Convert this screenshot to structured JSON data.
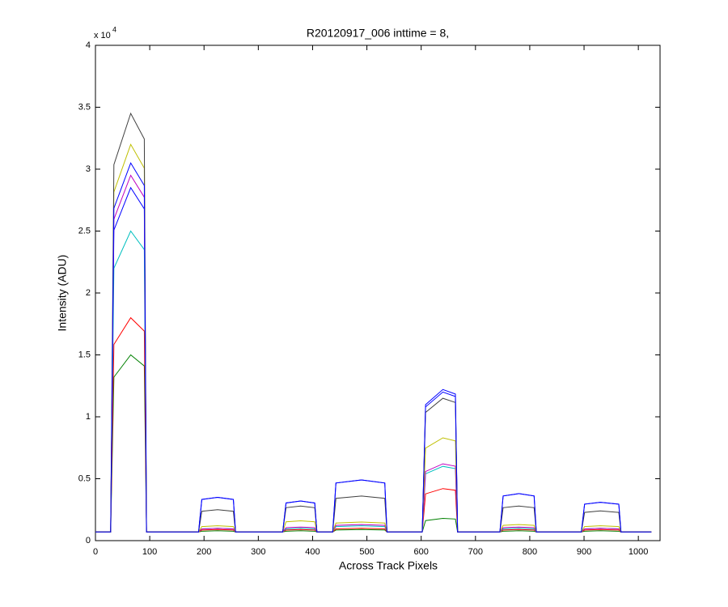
{
  "chart_data": {
    "type": "line",
    "title": "R20120917_006 inttime = 8,",
    "x_label": "Across Track Pixels",
    "y_label": "Intensity (ADU)",
    "y_exponent_base": "x 10",
    "y_exponent": "4",
    "xlim": [
      0,
      1040
    ],
    "ylim": [
      0,
      40000
    ],
    "xticks": [
      0,
      100,
      200,
      300,
      400,
      500,
      600,
      700,
      800,
      900,
      1000
    ],
    "yticks": [
      0,
      {
        "value": 5000,
        "label": "0.5"
      },
      {
        "value": 10000,
        "label": "1"
      },
      {
        "value": 15000,
        "label": "1.5"
      },
      {
        "value": 20000,
        "label": "2"
      },
      {
        "value": 25000,
        "label": "2.5"
      },
      {
        "value": 30000,
        "label": "3"
      },
      {
        "value": 35000,
        "label": "3.5"
      },
      {
        "value": 40000,
        "label": "4"
      }
    ],
    "grid": false,
    "x": [
      0,
      28,
      34,
      65,
      90,
      94,
      190,
      196,
      225,
      254,
      258,
      345,
      351,
      378,
      404,
      408,
      437,
      443,
      490,
      533,
      537,
      602,
      608,
      640,
      663,
      667,
      745,
      751,
      780,
      808,
      812,
      895,
      901,
      930,
      964,
      968,
      1024
    ],
    "series": [
      {
        "color": "#0000ff",
        "values": [
          700,
          700,
          25080,
          28500,
          26790,
          700,
          700,
          3325,
          3500,
          3325,
          700,
          700,
          3040,
          3200,
          3040,
          700,
          700,
          4655,
          4900,
          4655,
          700,
          700,
          10800,
          12000,
          11640,
          700,
          700,
          3610,
          3800,
          3610,
          700,
          700,
          2945,
          3100,
          2945,
          700,
          700
        ]
      },
      {
        "color": "#008000",
        "values": [
          700,
          700,
          13200,
          15000,
          14100,
          700,
          700,
          760,
          800,
          760,
          700,
          700,
          760,
          800,
          760,
          700,
          700,
          855,
          900,
          855,
          700,
          700,
          1620,
          1800,
          1746,
          700,
          700,
          760,
          800,
          760,
          700,
          700,
          760,
          800,
          760,
          700,
          700
        ]
      },
      {
        "color": "#ff0000",
        "values": [
          700,
          700,
          15840,
          18000,
          16920,
          700,
          700,
          855,
          900,
          855,
          700,
          700,
          855,
          900,
          855,
          700,
          700,
          950,
          1000,
          950,
          700,
          700,
          3780,
          4200,
          4074,
          700,
          700,
          855,
          900,
          855,
          700,
          700,
          855,
          900,
          855,
          700,
          700
        ]
      },
      {
        "color": "#00bfbf",
        "values": [
          700,
          700,
          22000,
          25000,
          23500,
          700,
          700,
          950,
          1000,
          950,
          700,
          700,
          950,
          1000,
          950,
          700,
          700,
          1140,
          1200,
          1140,
          700,
          700,
          5400,
          6000,
          5820,
          700,
          700,
          950,
          1000,
          950,
          700,
          700,
          950,
          1000,
          950,
          700,
          700
        ]
      },
      {
        "color": "#bf00bf",
        "values": [
          700,
          700,
          25960,
          29500,
          27730,
          700,
          700,
          950,
          1000,
          950,
          700,
          700,
          1045,
          1100,
          1045,
          700,
          700,
          1235,
          1300,
          1235,
          700,
          700,
          5580,
          6200,
          6014,
          700,
          700,
          1045,
          1100,
          1045,
          700,
          700,
          950,
          1000,
          950,
          700,
          700
        ]
      },
      {
        "color": "#bfbf00",
        "values": [
          700,
          700,
          28160,
          32000,
          30080,
          700,
          700,
          1140,
          1200,
          1140,
          700,
          700,
          1520,
          1600,
          1520,
          700,
          700,
          1425,
          1500,
          1425,
          700,
          700,
          7470,
          8300,
          8051,
          700,
          700,
          1235,
          1300,
          1235,
          700,
          700,
          1140,
          1200,
          1140,
          700,
          700
        ]
      },
      {
        "color": "#404040",
        "values": [
          700,
          700,
          30360,
          34500,
          32430,
          700,
          700,
          2375,
          2500,
          2375,
          700,
          700,
          2660,
          2800,
          2660,
          700,
          700,
          3420,
          3600,
          3420,
          700,
          700,
          10350,
          11500,
          11155,
          700,
          700,
          2660,
          2800,
          2660,
          700,
          700,
          2280,
          2400,
          2280,
          700,
          700
        ]
      },
      {
        "color": "#0000ff",
        "values": [
          700,
          700,
          26840,
          30500,
          28670,
          700,
          700,
          3325,
          3500,
          3325,
          700,
          700,
          3040,
          3200,
          3040,
          700,
          700,
          4655,
          4900,
          4655,
          700,
          700,
          10980,
          12200,
          11834,
          700,
          700,
          3610,
          3800,
          3610,
          700,
          700,
          2945,
          3100,
          2945,
          700,
          700
        ]
      }
    ]
  }
}
